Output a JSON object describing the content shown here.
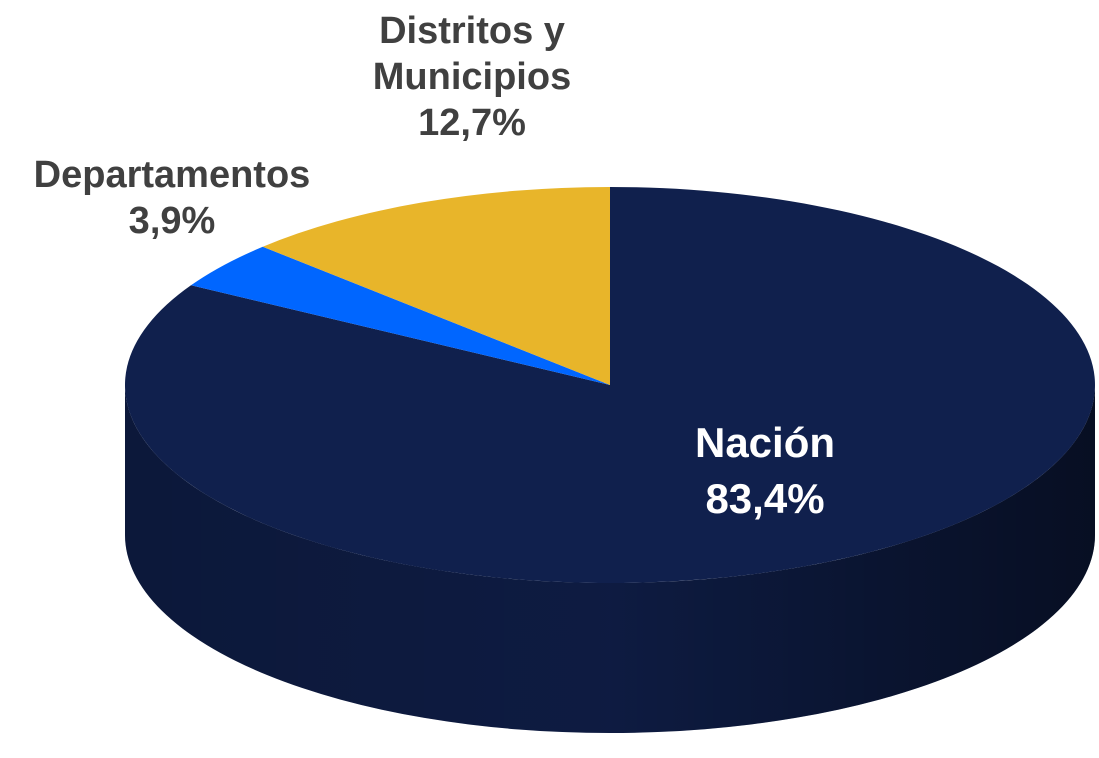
{
  "chart_data": {
    "type": "pie",
    "categories": [
      "Nación",
      "Departamentos",
      "Distritos y Municipios"
    ],
    "values": [
      83.4,
      3.9,
      12.7
    ],
    "value_labels": [
      "83,4%",
      "3,9%",
      "12,7%"
    ],
    "colors": [
      "#10204d",
      "#0066ff",
      "#e8b52a"
    ]
  }
}
